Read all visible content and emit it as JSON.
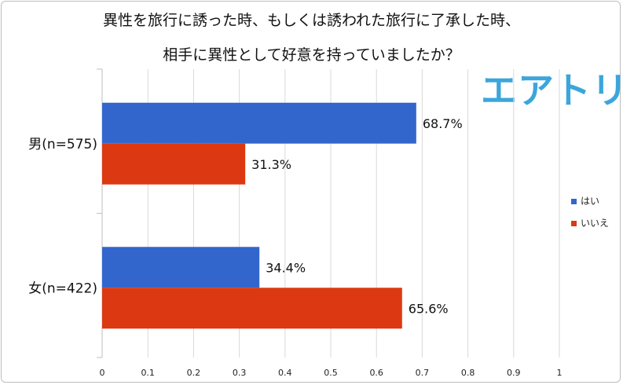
{
  "title_lines": [
    "異性を旅行に誘った時、もしくは誘われた旅行に了承した時、",
    "相手に異性として好意を持っていましたか？"
  ],
  "logo_text": "エアトリ",
  "colors": {
    "はい": "#3366cc",
    "いいえ": "#dc3912",
    "grid": "#d9d9d9",
    "axis": "#bfbfbf"
  },
  "chart_data": {
    "type": "bar",
    "orientation": "horizontal",
    "categories": [
      "男(n=575)",
      "女(n=422)"
    ],
    "series": [
      {
        "name": "はい",
        "values": [
          0.687,
          0.344
        ],
        "labels": [
          "68.7%",
          "34.4%"
        ]
      },
      {
        "name": "いいえ",
        "values": [
          0.313,
          0.656
        ],
        "labels": [
          "31.3%",
          "65.6%"
        ]
      }
    ],
    "xlim": [
      0,
      1
    ],
    "xticks": [
      "0",
      "0.1",
      "0.2",
      "0.3",
      "0.4",
      "0.5",
      "0.6",
      "0.7",
      "0.8",
      "0.9",
      "1"
    ],
    "grid": true,
    "legend_position": "right"
  }
}
